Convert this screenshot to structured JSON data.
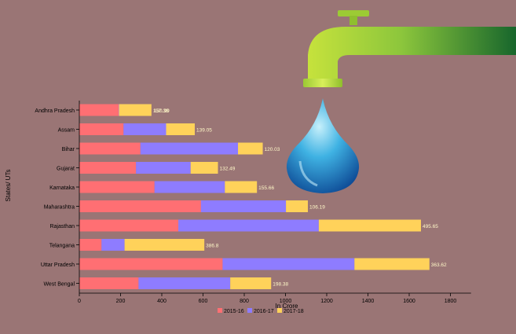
{
  "colors": {
    "background": "#9a7575",
    "series": [
      "#ff6f73",
      "#8e7cff",
      "#ffd25a"
    ],
    "tap_light": "#b9db3a",
    "tap_dark": "#1a6e2f",
    "drop_light": "#7fd6f0",
    "drop_dark": "#0b4f9e"
  },
  "chart_data": {
    "type": "bar",
    "orientation": "horizontal",
    "stacked": true,
    "title": "",
    "xlabel": "In Crore",
    "ylabel": "States/ UTs",
    "xlim": [
      0,
      1900
    ],
    "xticks": [
      0,
      200,
      400,
      600,
      800,
      1000,
      1200,
      1400,
      1600,
      1800
    ],
    "grid": false,
    "legend_position": "bottom",
    "categories": [
      "Andhra Pradesh",
      "Assam",
      "Bihar",
      "Gujarat",
      "Karnataka",
      "Maharashtra",
      "Rajasthan",
      "Telangana",
      "Uttar Pradesh",
      "West Bengal"
    ],
    "series": [
      {
        "name": "2015-16",
        "values": [
          190.8,
          214.3,
          296.35,
          274.78,
          364.64,
          590,
          480.27,
          107.62,
          694.96,
          287.17
        ],
        "labels": [
          "190.8",
          "214.3",
          "296.35",
          "274.78",
          "364.64",
          "590",
          "480.27",
          "107.62",
          "694.96",
          "287.17"
        ]
      },
      {
        "name": "2016-17",
        "values": [
          1.61,
          206.61,
          473.29,
          265.16,
          341.33,
          412.32,
          681.21,
          111.89,
          639.54,
          444.86
        ],
        "labels": [
          "",
          "206.61",
          "473.29",
          "265.16",
          "341.33",
          "412.32",
          "681.21",
          "111.89",
          "639.54",
          "444.86"
        ]
      },
      {
        "name": "2017-18",
        "values": [
          157.38,
          139.05,
          120.03,
          132.49,
          155.66,
          106.19,
          495.65,
          386.8,
          363.62,
          198.38
        ],
        "labels": [
          "157.38",
          "139.05",
          "120.03",
          "132.49",
          "155.66",
          "106.19",
          "495.65",
          "386.8",
          "363.62",
          "198.38"
        ]
      }
    ],
    "trailing_labels": [
      "130.99",
      "",
      "",
      "",
      "",
      "",
      "",
      "",
      "",
      ""
    ]
  }
}
